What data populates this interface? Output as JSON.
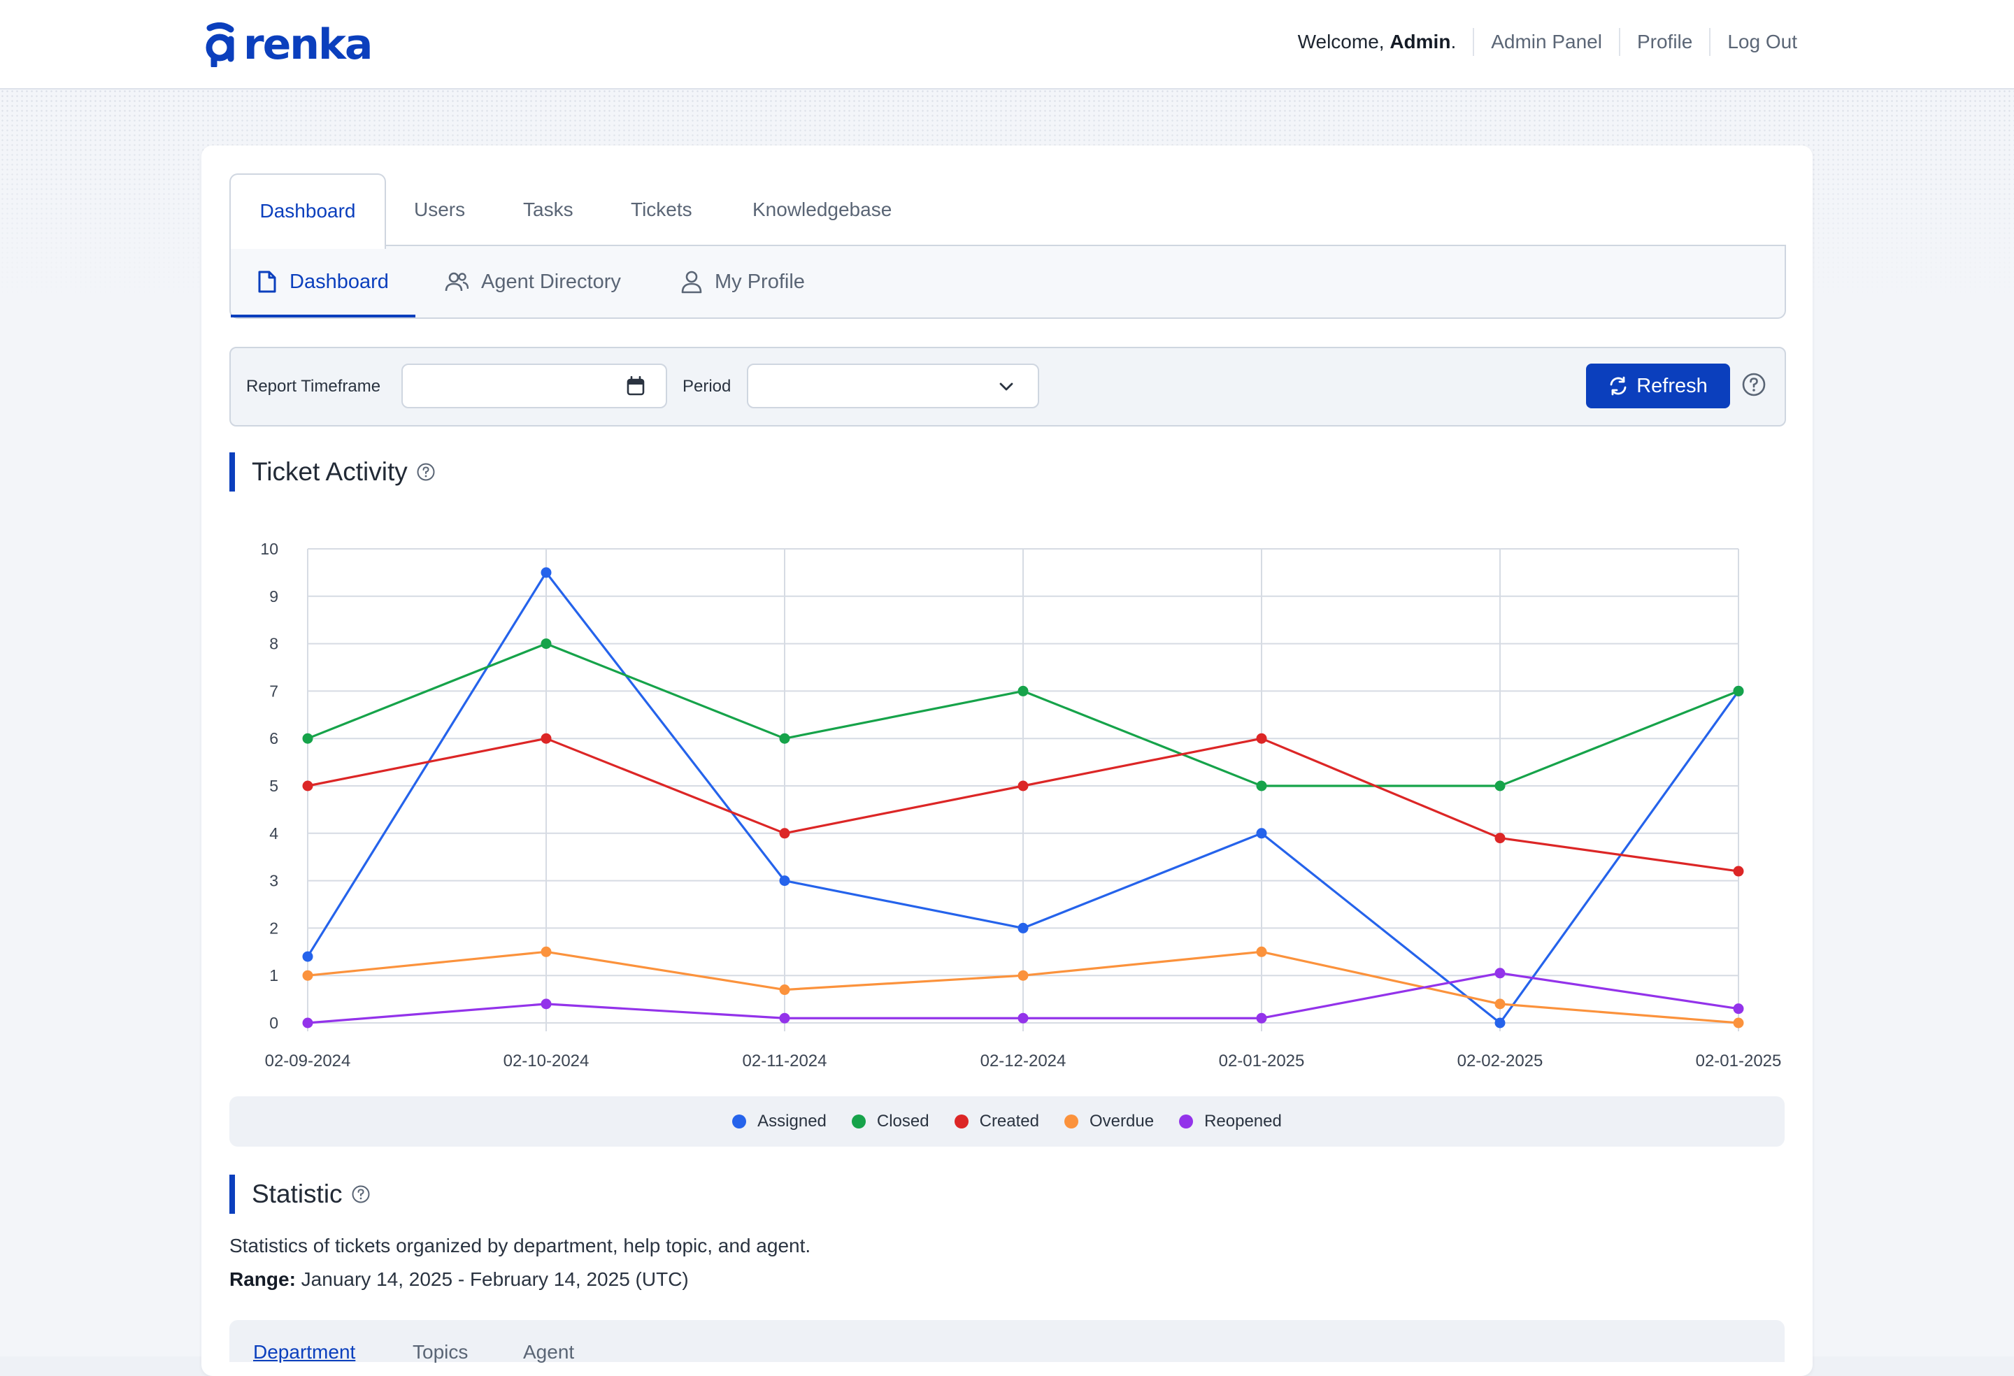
{
  "header": {
    "logo_text": "renka",
    "welcome_prefix": "Welcome, ",
    "welcome_user": "Admin",
    "welcome_suffix": ".",
    "nav": [
      "Admin Panel",
      "Profile",
      "Log Out"
    ]
  },
  "main_tabs": [
    "Dashboard",
    "Users",
    "Tasks",
    "Tickets",
    "Knowledgebase"
  ],
  "sub_tabs": [
    {
      "label": "Dashboard",
      "icon": "document-icon"
    },
    {
      "label": "Agent Directory",
      "icon": "users-icon"
    },
    {
      "label": "My Profile",
      "icon": "user-icon"
    }
  ],
  "filters": {
    "timeframe_label": "Report Timeframe",
    "timeframe_value": "",
    "period_label": "Period",
    "period_value": "",
    "refresh_label": "Refresh"
  },
  "ticket_activity": {
    "title": "Ticket Activity"
  },
  "chart_data": {
    "type": "line",
    "x": [
      "02-09-2024",
      "02-10-2024",
      "02-11-2024",
      "02-12-2024",
      "02-01-2025",
      "02-02-2025",
      "02-01-2025"
    ],
    "ylim": [
      0,
      10
    ],
    "yticks": [
      0,
      1,
      2,
      3,
      4,
      5,
      6,
      7,
      8,
      9,
      10
    ],
    "grid": true,
    "legend_position": "bottom",
    "series": [
      {
        "name": "Assigned",
        "color": "#2563eb",
        "values": [
          1.4,
          9.5,
          3.0,
          2.0,
          4.0,
          0,
          7.0
        ]
      },
      {
        "name": "Closed",
        "color": "#16a34a",
        "values": [
          6,
          8,
          6,
          7,
          5,
          5,
          7
        ]
      },
      {
        "name": "Created",
        "color": "#dc2626",
        "values": [
          5,
          6,
          4,
          5,
          6,
          3.9,
          3.2
        ]
      },
      {
        "name": "Overdue",
        "color": "#fb923c",
        "values": [
          1.0,
          1.5,
          0.7,
          1.0,
          1.5,
          0.4,
          0
        ]
      },
      {
        "name": "Reopened",
        "color": "#9333ea",
        "values": [
          0,
          0.4,
          0.1,
          0.1,
          0.1,
          1.05,
          0.3
        ]
      }
    ]
  },
  "statistic": {
    "title": "Statistic",
    "description": "Statistics of tickets organized by department, help topic, and agent.",
    "range_label": "Range:",
    "range_value": " January 14, 2025 - February 14, 2025 (UTC)",
    "tabs": [
      "Department",
      "Topics",
      "Agent"
    ]
  }
}
